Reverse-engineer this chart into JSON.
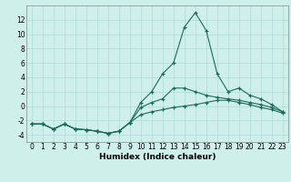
{
  "x": [
    0,
    1,
    2,
    3,
    4,
    5,
    6,
    7,
    8,
    9,
    10,
    11,
    12,
    13,
    14,
    15,
    16,
    17,
    18,
    19,
    20,
    21,
    22,
    23
  ],
  "line_top": [
    -2.5,
    -2.5,
    -3.2,
    -2.5,
    -3.2,
    -3.3,
    -3.5,
    -3.8,
    -3.5,
    -2.3,
    0.5,
    2.0,
    4.5,
    6.0,
    11.0,
    13.0,
    10.5,
    4.5,
    2.0,
    2.5,
    1.5,
    1.0,
    0.2,
    -0.8
  ],
  "line_mid": [
    -2.5,
    -2.5,
    -3.2,
    -2.5,
    -3.2,
    -3.3,
    -3.5,
    -3.8,
    -3.5,
    -2.3,
    -0.2,
    0.5,
    1.0,
    2.5,
    2.5,
    2.0,
    1.5,
    1.2,
    1.0,
    0.8,
    0.5,
    0.2,
    -0.2,
    -0.8
  ],
  "line_bot": [
    -2.5,
    -2.5,
    -3.2,
    -2.5,
    -3.2,
    -3.3,
    -3.5,
    -3.8,
    -3.5,
    -2.3,
    -1.2,
    -0.8,
    -0.5,
    -0.2,
    0.0,
    0.2,
    0.5,
    0.8,
    0.8,
    0.5,
    0.2,
    -0.2,
    -0.5,
    -1.0
  ],
  "background_color": "#cff0ea",
  "grid_color": "#aaddd5",
  "line_color": "#1a6b5a",
  "xlabel": "Humidex (Indice chaleur)",
  "ylim": [
    -5,
    14
  ],
  "xlim": [
    -0.5,
    23.5
  ],
  "yticks": [
    -4,
    -2,
    0,
    2,
    4,
    6,
    8,
    10,
    12
  ],
  "xticks": [
    0,
    1,
    2,
    3,
    4,
    5,
    6,
    7,
    8,
    9,
    10,
    11,
    12,
    13,
    14,
    15,
    16,
    17,
    18,
    19,
    20,
    21,
    22,
    23
  ],
  "tick_fontsize": 5.5,
  "xlabel_fontsize": 6.5
}
